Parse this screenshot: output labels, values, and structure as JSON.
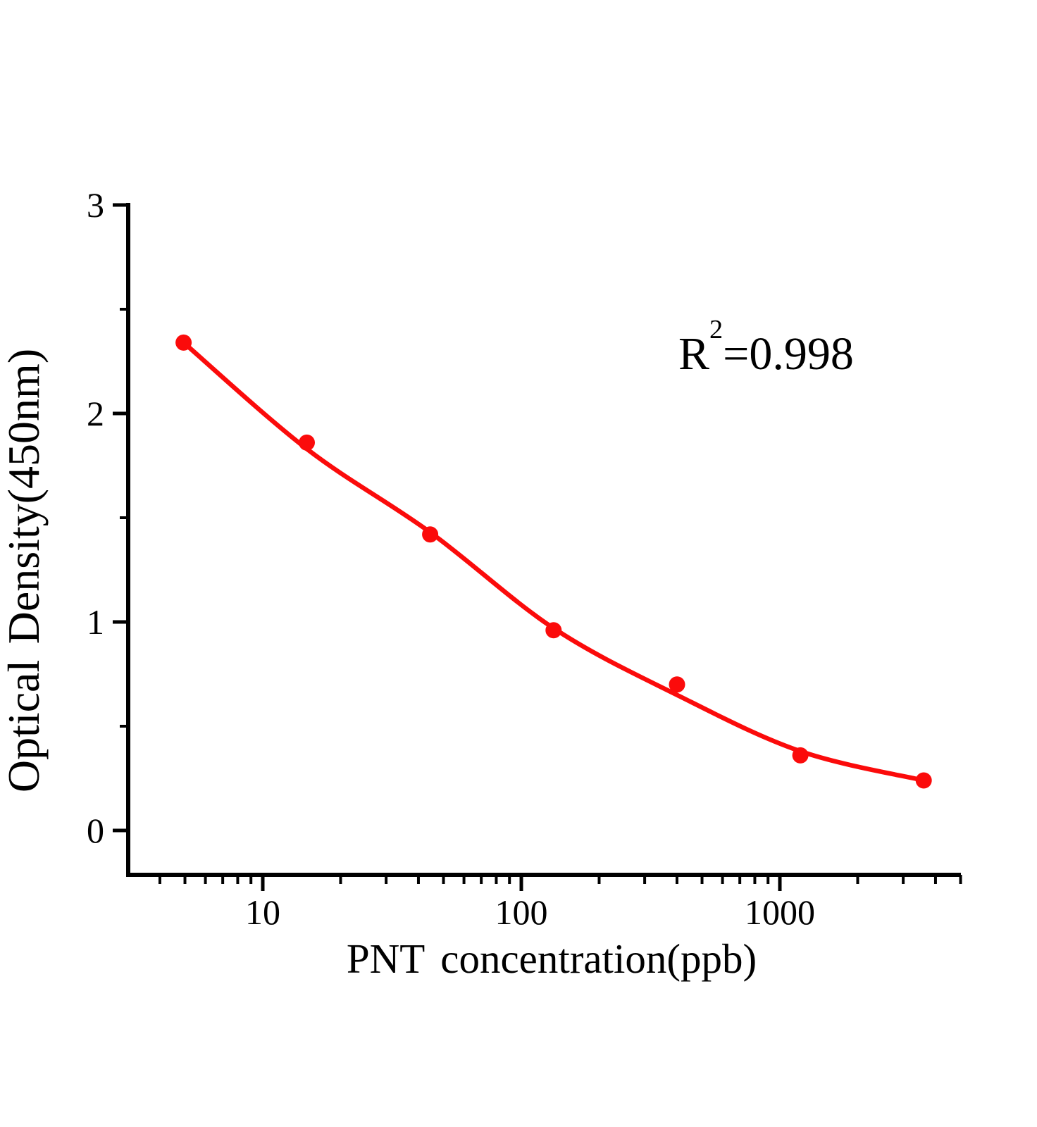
{
  "figure": {
    "y_axis_title": "Optical Density(450nm)",
    "x_axis_title": "PNT concentration(ppb)",
    "annotation": {
      "base": "R",
      "sup": "2",
      "rest": "=0.998"
    }
  },
  "chart_data": {
    "type": "scatter",
    "title": "",
    "xlabel": "PNT concentration(ppb)",
    "ylabel": "Optical Density(450nm)",
    "x_scale": "log10",
    "xlim_ppb": [
      3,
      5000
    ],
    "ylim": [
      -0.2,
      3
    ],
    "grid": false,
    "legend_position": "none",
    "annotation_text": "R²=0.998",
    "accent_color": "#fb0b0b",
    "axis_color": "#000000",
    "x_major_ticks": [
      10,
      100,
      1000
    ],
    "x_minor_ticks": [
      4,
      5,
      6,
      7,
      8,
      9,
      20,
      30,
      40,
      50,
      60,
      70,
      80,
      90,
      200,
      300,
      400,
      500,
      600,
      700,
      800,
      900,
      2000,
      3000,
      4000,
      5000
    ],
    "y_major_ticks": [
      0,
      1,
      2,
      3
    ],
    "y_minor_ticks": [
      0.5,
      1.5,
      2.5
    ],
    "series": [
      {
        "name": "standard-points",
        "type": "scatter",
        "marker": "filled-circle",
        "x_ppb": [
          4.94,
          14.8,
          44.4,
          133.3,
          400,
          1200,
          3600
        ],
        "y_od": [
          2.34,
          1.86,
          1.42,
          0.96,
          0.7,
          0.36,
          0.24
        ]
      },
      {
        "name": "fitted-curve",
        "type": "line",
        "x_ppb": [
          4.94,
          14.8,
          44.4,
          133.3,
          400,
          1200,
          3600
        ],
        "y_od": [
          2.34,
          1.83,
          1.43,
          0.97,
          0.65,
          0.38,
          0.24
        ]
      }
    ]
  }
}
